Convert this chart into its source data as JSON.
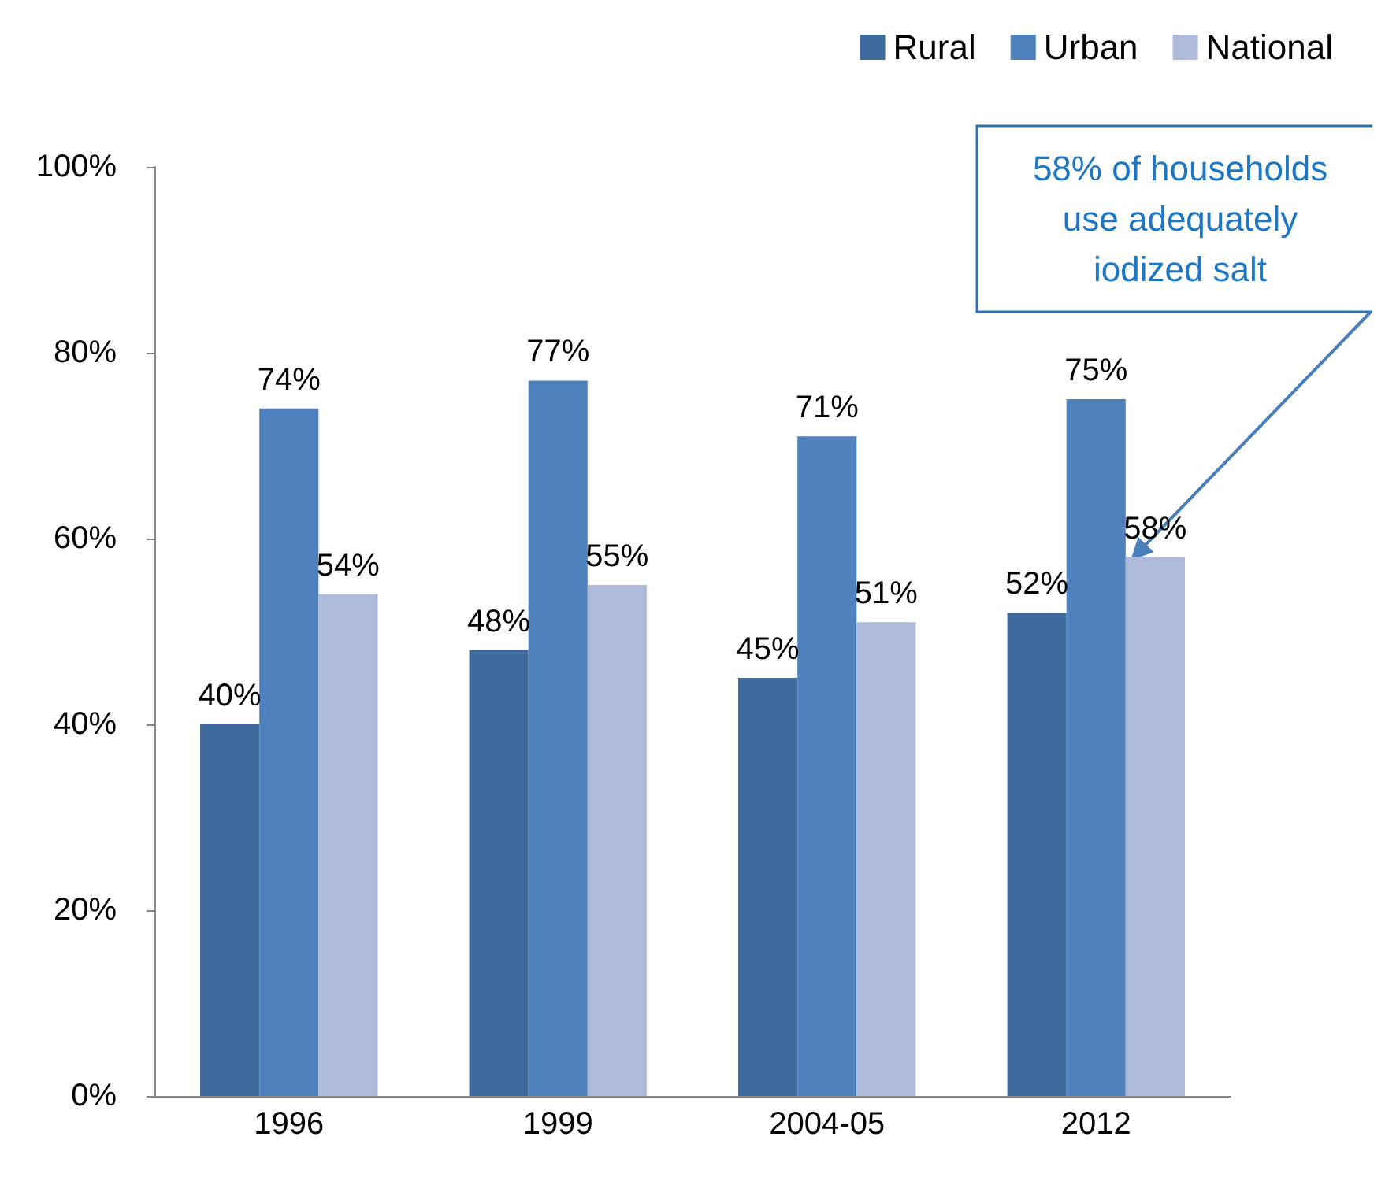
{
  "chart_data": {
    "type": "bar",
    "categories": [
      "1996",
      "1999",
      "2004-05",
      "2012"
    ],
    "series": [
      {
        "name": "Rural",
        "color": "#3f6a9e",
        "values": [
          40,
          48,
          45,
          52
        ],
        "value_labels": [
          "40%",
          "48%",
          "45%",
          "52%"
        ]
      },
      {
        "name": "Urban",
        "color": "#4f81bd",
        "values": [
          74,
          77,
          71,
          75
        ],
        "value_labels": [
          "74%",
          "77%",
          "71%",
          "75%"
        ]
      },
      {
        "name": "National",
        "color": "#adbad9",
        "values": [
          54,
          55,
          51,
          58
        ],
        "value_labels": [
          "54%",
          "55%",
          "51%",
          "58%"
        ]
      }
    ],
    "ylim": [
      0,
      100
    ],
    "yticks": [
      {
        "value": 0,
        "label": "0%"
      },
      {
        "value": 20,
        "label": "20%"
      },
      {
        "value": 40,
        "label": "40%"
      },
      {
        "value": 60,
        "label": "60%"
      },
      {
        "value": 80,
        "label": "80%"
      },
      {
        "value": 100,
        "label": "100%"
      }
    ],
    "grid": false,
    "legend": "top right",
    "annotations": [
      "58% of households use adequately iodized salt"
    ]
  }
}
